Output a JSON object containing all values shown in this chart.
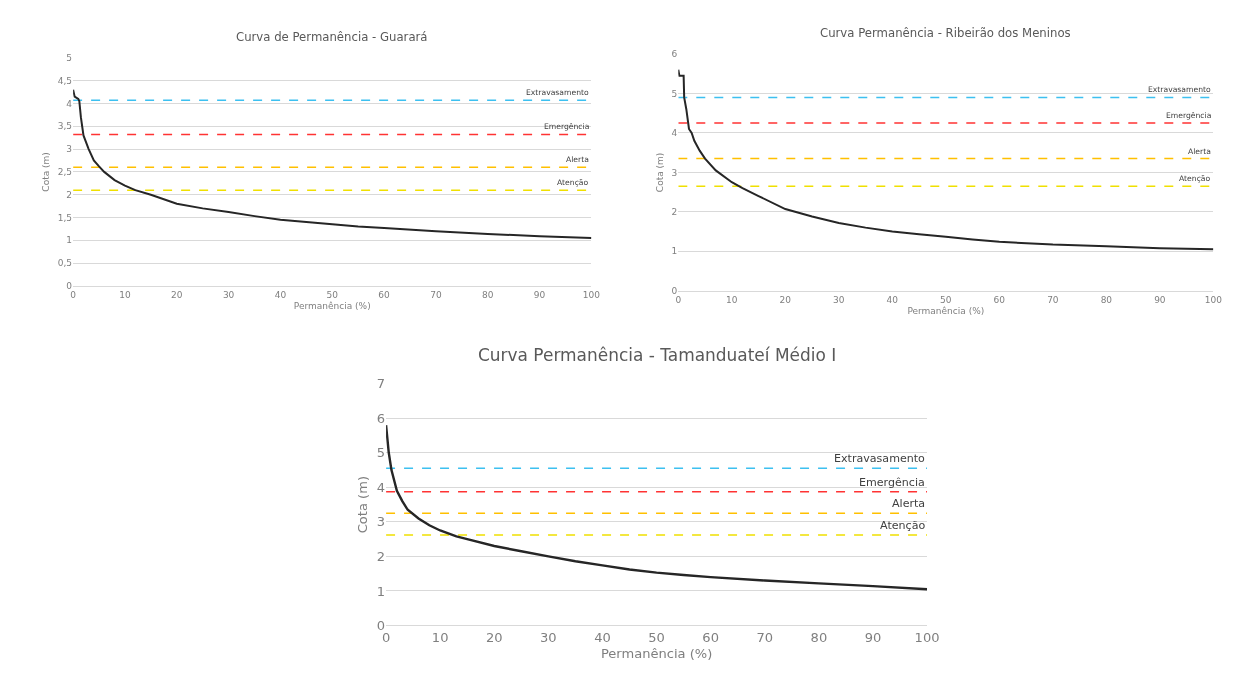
{
  "chart_data": [
    {
      "type": "line",
      "title": "Curva de Permanência - Guarará",
      "xlabel": "Permanência (%)",
      "ylabel": "Cota (m)",
      "x": [
        0,
        0.3,
        1,
        1.2,
        1.5,
        2,
        3,
        4,
        5,
        6,
        8,
        10,
        12,
        15,
        20,
        25,
        30,
        35,
        40,
        45,
        50,
        55,
        60,
        70,
        80,
        90,
        100
      ],
      "series": [
        {
          "color": "#262626",
          "values": [
            4.3,
            4.15,
            4.1,
            4.05,
            3.7,
            3.3,
            3.0,
            2.75,
            2.62,
            2.5,
            2.32,
            2.2,
            2.1,
            2.0,
            1.8,
            1.7,
            1.62,
            1.53,
            1.45,
            1.4,
            1.35,
            1.3,
            1.27,
            1.2,
            1.14,
            1.09,
            1.05
          ]
        }
      ],
      "xlim": [
        0,
        100
      ],
      "xticks": [
        0,
        10,
        20,
        30,
        40,
        50,
        60,
        70,
        80,
        90,
        100
      ],
      "ylim": [
        0,
        5
      ],
      "yticks": [
        0,
        {
          "value": 0.5,
          "label": "0,5"
        },
        1,
        {
          "value": 1.5,
          "label": "1,5"
        },
        2,
        {
          "value": 2.5,
          "label": "2,5"
        },
        3,
        {
          "value": 3.5,
          "label": "3,5"
        },
        4,
        {
          "value": 4.5,
          "label": "4,5"
        },
        5
      ],
      "grid": "y",
      "marker": "none",
      "line_style": "solid",
      "ref_lines": [
        {
          "axis": "y",
          "value": 4.07,
          "label": "Extravasamento",
          "color": "#3cc0f0",
          "line_style": "dashed"
        },
        {
          "axis": "y",
          "value": 3.32,
          "label": "Emergência",
          "color": "#ff3333",
          "line_style": "dashed"
        },
        {
          "axis": "y",
          "value": 2.6,
          "label": "Alerta",
          "color": "#ffc000",
          "line_style": "dashed"
        },
        {
          "axis": "y",
          "value": 2.1,
          "label": "Atenção",
          "color": "#f0e000",
          "line_style": "dashed"
        }
      ]
    },
    {
      "type": "line",
      "title": "Curva Permanência - Ribeirão dos Meninos",
      "xlabel": "Permanência (%)",
      "ylabel": "Cota (m)",
      "x": [
        0,
        0.2,
        1,
        1.1,
        1.5,
        2,
        2.5,
        3,
        4,
        5,
        7,
        10,
        12,
        15,
        20,
        25,
        30,
        35,
        40,
        45,
        50,
        55,
        60,
        70,
        80,
        90,
        100
      ],
      "series": [
        {
          "color": "#262626",
          "values": [
            5.6,
            5.45,
            5.45,
            4.9,
            4.6,
            4.1,
            4.0,
            3.8,
            3.55,
            3.35,
            3.05,
            2.75,
            2.6,
            2.4,
            2.07,
            1.88,
            1.72,
            1.6,
            1.5,
            1.43,
            1.37,
            1.3,
            1.24,
            1.17,
            1.13,
            1.08,
            1.05
          ]
        }
      ],
      "xlim": [
        0,
        100
      ],
      "xticks": [
        0,
        10,
        20,
        30,
        40,
        50,
        60,
        70,
        80,
        90,
        100
      ],
      "ylim": [
        0,
        6
      ],
      "yticks": [
        0,
        1,
        2,
        3,
        4,
        5,
        6
      ],
      "grid": "y",
      "marker": "none",
      "line_style": "solid",
      "ref_lines": [
        {
          "axis": "y",
          "value": 4.9,
          "label": "Extravasamento",
          "color": "#3cc0f0",
          "line_style": "dashed"
        },
        {
          "axis": "y",
          "value": 4.25,
          "label": "Emergência",
          "color": "#ff3333",
          "line_style": "dashed"
        },
        {
          "axis": "y",
          "value": 3.35,
          "label": "Alerta",
          "color": "#ffc000",
          "line_style": "dashed"
        },
        {
          "axis": "y",
          "value": 2.65,
          "label": "Atenção",
          "color": "#f0e000",
          "line_style": "dashed"
        }
      ]
    },
    {
      "type": "line",
      "title": "Curva Permanência - Tamanduateí Médio I",
      "xlabel": "Permanência (%)",
      "ylabel": "Cota (m)",
      "x": [
        0,
        0.5,
        1,
        2,
        3,
        4,
        6,
        8,
        10,
        13,
        15,
        20,
        25,
        30,
        35,
        40,
        45,
        50,
        55,
        60,
        70,
        80,
        90,
        100
      ],
      "series": [
        {
          "color": "#262626",
          "values": [
            5.8,
            5.0,
            4.5,
            3.9,
            3.6,
            3.35,
            3.1,
            2.9,
            2.75,
            2.58,
            2.5,
            2.3,
            2.15,
            2.0,
            1.86,
            1.74,
            1.62,
            1.53,
            1.46,
            1.4,
            1.3,
            1.22,
            1.14,
            1.05
          ]
        }
      ],
      "xlim": [
        0,
        100
      ],
      "xticks": [
        0,
        10,
        20,
        30,
        40,
        50,
        60,
        70,
        80,
        90,
        100
      ],
      "ylim": [
        0,
        7
      ],
      "yticks": [
        0,
        1,
        2,
        3,
        4,
        5,
        6,
        7
      ],
      "grid": "y",
      "marker": "none",
      "line_style": "solid",
      "ref_lines": [
        {
          "axis": "y",
          "value": 4.55,
          "label": "Extravasamento",
          "color": "#3cc0f0",
          "line_style": "dashed"
        },
        {
          "axis": "y",
          "value": 3.87,
          "label": "Emergência",
          "color": "#ff3333",
          "line_style": "dashed"
        },
        {
          "axis": "y",
          "value": 3.25,
          "label": "Alerta",
          "color": "#ffc000",
          "line_style": "dashed"
        },
        {
          "axis": "y",
          "value": 2.62,
          "label": "Atenção",
          "color": "#f0e000",
          "line_style": "dashed"
        }
      ]
    }
  ]
}
